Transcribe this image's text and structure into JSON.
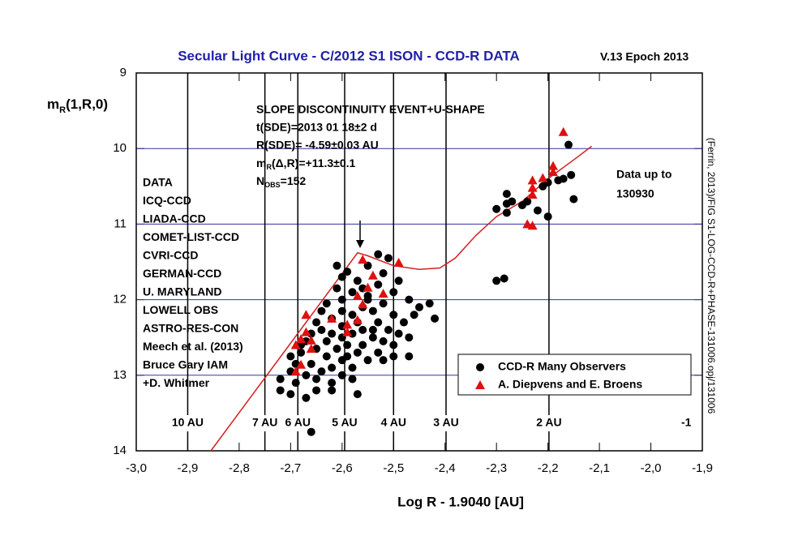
{
  "chart_data": {
    "type": "scatter",
    "title": "Secular Light Curve - C/2012 S1 ISON - CCD-R DATA",
    "version": "V.13 Epoch 2013",
    "x_label": "Log R - 1.9040 [AU]",
    "y_label": {
      "main": "m",
      "sub": "R",
      "rest": "(1,R,0)"
    },
    "side_note": "(Ferrin, 2013)/FIG S1-LOG-CCD-R+PHASE-131006.opj/131006",
    "sde_lines": [
      "SLOPE DISCONTINUITY EVENT+U-SHAPE",
      "t(SDE)=2013 01 18±2 d",
      "R(SDE)= -4.59±0.03 AU",
      {
        "main": "m",
        "sub": "R",
        "rest": "(Δ,R)=+11.3±0.1"
      },
      {
        "main": "N",
        "sub": "OBS",
        "rest": "=152"
      }
    ],
    "data_sources": [
      "DATA",
      "ICQ-CCD",
      "LIADA-CCD",
      "COMET-LIST-CCD",
      "CVRI-CCD",
      "GERMAN-CCD",
      "U. MARYLAND",
      "LOWELL OBS",
      "ASTRO-RES-CON",
      "Meech et al. (2013)",
      "Bruce Gary IAM",
      "+D. Whitmer"
    ],
    "data_note": [
      "Data up to",
      "130930"
    ],
    "corner_label": "-1",
    "au_lines": [
      {
        "x": -2.9,
        "label": "10 AU"
      },
      {
        "x": -2.75,
        "label": "7 AU"
      },
      {
        "x": -2.686,
        "label": "6 AU"
      },
      {
        "x": -2.595,
        "label": "5 AU"
      },
      {
        "x": -2.5,
        "label": "4 AU"
      },
      {
        "x": -2.398,
        "label": "3 AU"
      },
      {
        "x": -2.198,
        "label": "2 AU"
      }
    ],
    "xlim": [
      -3.0,
      -1.9
    ],
    "xticks": [
      {
        "value": -3.0,
        "label": "-3,0"
      },
      {
        "value": -2.9,
        "label": "-2,9"
      },
      {
        "value": -2.8,
        "label": "-2,8"
      },
      {
        "value": -2.7,
        "label": "-2,7"
      },
      {
        "value": -2.6,
        "label": "-2,6"
      },
      {
        "value": -2.5,
        "label": "-2,5"
      },
      {
        "value": -2.4,
        "label": "-2,4"
      },
      {
        "value": -2.3,
        "label": "-2,3"
      },
      {
        "value": -2.2,
        "label": "-2,2"
      },
      {
        "value": -2.1,
        "label": "-2,1"
      },
      {
        "value": -2.0,
        "label": "-2,0"
      },
      {
        "value": -1.9,
        "label": "-1,9"
      }
    ],
    "ylim": [
      14,
      9
    ],
    "yticks": [
      9,
      10,
      11,
      12,
      13,
      14
    ],
    "grid": true,
    "grid_color": "#3333aa",
    "legend": "lower right",
    "curve": {
      "color": "#d42020",
      "x": [
        -2.855,
        -2.57,
        -2.55,
        -2.5,
        -2.45,
        -2.41,
        -2.38,
        -2.34,
        -2.3,
        -2.25,
        -2.2,
        -2.15,
        -2.115
      ],
      "values": [
        14.0,
        11.38,
        11.42,
        11.55,
        11.6,
        11.58,
        11.45,
        11.15,
        10.9,
        10.7,
        10.4,
        10.15,
        9.97
      ]
    },
    "series": [
      {
        "name": "CCD-R Many Observers",
        "color": "#000000",
        "marker": "circle",
        "x": [
          -2.16,
          -2.155,
          -2.15,
          -2.17,
          -2.18,
          -2.2,
          -2.21,
          -2.2,
          -2.24,
          -2.25,
          -2.27,
          -2.28,
          -2.28,
          -2.3,
          -2.28,
          -2.22,
          -2.3,
          -2.285,
          -2.53,
          -2.51,
          -2.55,
          -2.59,
          -2.6,
          -2.49,
          -2.52,
          -2.57,
          -2.53,
          -2.61,
          -2.58,
          -2.5,
          -2.55,
          -2.47,
          -2.6,
          -2.63,
          -2.52,
          -2.56,
          -2.45,
          -2.43,
          -2.42,
          -2.6,
          -2.58,
          -2.54,
          -2.5,
          -2.48,
          -2.62,
          -2.65,
          -2.57,
          -2.53,
          -2.6,
          -2.56,
          -2.51,
          -2.49,
          -2.47,
          -2.64,
          -2.66,
          -2.62,
          -2.58,
          -2.54,
          -2.52,
          -2.5,
          -2.6,
          -2.63,
          -2.67,
          -2.59,
          -2.56,
          -2.61,
          -2.57,
          -2.53,
          -2.65,
          -2.68,
          -2.7,
          -2.63,
          -2.6,
          -2.55,
          -2.52,
          -2.66,
          -2.69,
          -2.62,
          -2.58,
          -2.64,
          -2.6,
          -2.7,
          -2.67,
          -2.72,
          -2.69,
          -2.65,
          -2.62,
          -2.58,
          -2.72,
          -2.7,
          -2.67,
          -2.65,
          -2.62,
          -2.57,
          -2.66,
          -2.55,
          -2.46,
          -2.61,
          -2.56,
          -2.54,
          -2.64,
          -2.68,
          -2.5,
          -2.47,
          -2.59
        ],
        "values": [
          9.95,
          10.35,
          10.67,
          10.4,
          10.42,
          10.45,
          10.5,
          10.9,
          10.7,
          10.75,
          10.7,
          10.6,
          10.73,
          10.8,
          10.85,
          10.82,
          11.75,
          11.72,
          11.4,
          11.45,
          11.55,
          11.63,
          11.7,
          11.75,
          11.65,
          11.75,
          11.8,
          11.85,
          11.9,
          11.9,
          11.95,
          12.0,
          12.0,
          12.05,
          12.05,
          12.1,
          12.1,
          12.05,
          12.25,
          12.15,
          12.2,
          12.15,
          12.2,
          12.3,
          12.25,
          12.3,
          12.3,
          12.3,
          12.35,
          12.4,
          12.4,
          12.45,
          12.5,
          12.4,
          12.45,
          12.45,
          12.45,
          12.5,
          12.55,
          12.6,
          12.5,
          12.55,
          12.55,
          12.6,
          12.6,
          12.65,
          12.7,
          12.7,
          12.65,
          12.7,
          12.75,
          12.75,
          12.8,
          12.8,
          12.8,
          12.85,
          12.85,
          12.9,
          12.9,
          12.95,
          13.0,
          12.95,
          13.0,
          13.05,
          13.1,
          13.05,
          13.1,
          13.05,
          13.2,
          13.25,
          13.3,
          13.2,
          13.2,
          13.25,
          13.75,
          12.0,
          12.2,
          11.55,
          11.85,
          12.4,
          12.15,
          12.6,
          12.75,
          12.75,
          12.75
        ]
      },
      {
        "name": "A. Diepvens and E. Broens",
        "color": "#e01010",
        "marker": "triangle",
        "x": [
          -2.17,
          -2.19,
          -2.19,
          -2.21,
          -2.23,
          -2.23,
          -2.23,
          -2.24,
          -2.23,
          -2.56,
          -2.49,
          -2.54,
          -2.55,
          -2.52,
          -2.57,
          -2.56,
          -2.67,
          -2.57,
          -2.62,
          -2.59,
          -2.59,
          -2.67,
          -2.68,
          -2.66,
          -2.69,
          -2.66,
          -2.68,
          -2.69
        ],
        "values": [
          9.78,
          10.23,
          10.31,
          10.39,
          10.42,
          10.52,
          10.61,
          11.0,
          11.02,
          11.47,
          11.51,
          11.68,
          11.84,
          11.92,
          11.95,
          12.06,
          12.2,
          12.27,
          12.25,
          12.33,
          12.43,
          12.43,
          12.52,
          12.54,
          12.6,
          12.65,
          12.86,
          12.95
        ]
      }
    ]
  }
}
